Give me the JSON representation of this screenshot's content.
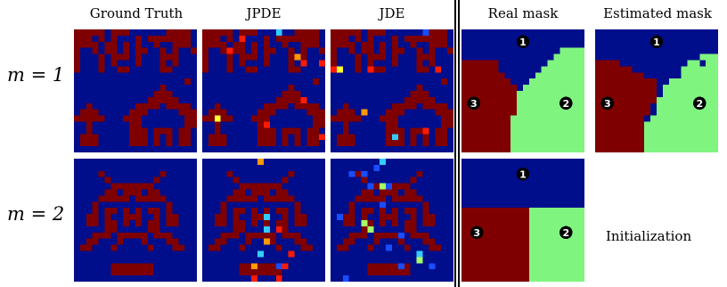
{
  "columns": [
    "Ground Truth",
    "JPDE",
    "JDE",
    "Real mask",
    "Estimated mask"
  ],
  "rows": [
    "m = 1",
    "m = 2"
  ],
  "initialization_label": "Initialization",
  "region_labels": [
    "1",
    "2",
    "3"
  ],
  "colors": {
    "background": "#000e8c",
    "object": "#7f0000",
    "region_green": "#7ff57f",
    "noise_red": "#ff1a00",
    "noise_orange": "#ff9900",
    "noise_yellow": "#ffff33",
    "noise_cyan": "#33ccff",
    "noise_blue": "#1a4dff",
    "noise_light_green": "#a6ff66"
  }
}
